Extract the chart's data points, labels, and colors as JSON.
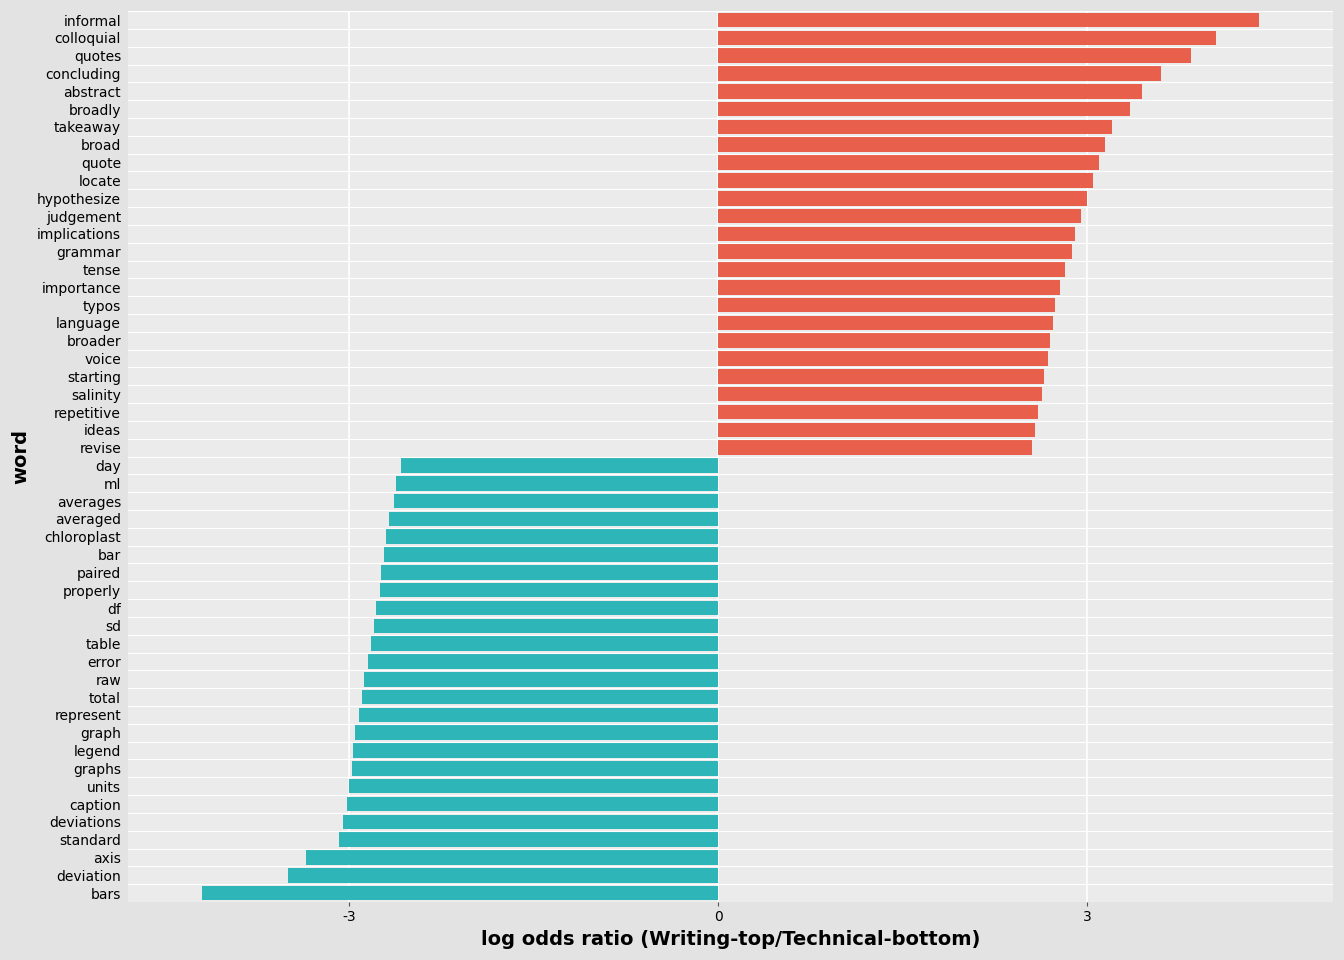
{
  "words": [
    "informal",
    "colloquial",
    "quotes",
    "concluding",
    "abstract",
    "broadly",
    "takeaway",
    "broad",
    "quote",
    "locate",
    "hypothesize",
    "judgement",
    "implications",
    "grammar",
    "tense",
    "importance",
    "typos",
    "language",
    "broader",
    "voice",
    "starting",
    "salinity",
    "repetitive",
    "ideas",
    "revise",
    "day",
    "ml",
    "averages",
    "averaged",
    "chloroplast",
    "bar",
    "paired",
    "properly",
    "df",
    "sd",
    "table",
    "error",
    "raw",
    "total",
    "represent",
    "graph",
    "legend",
    "graphs",
    "units",
    "caption",
    "deviations",
    "standard",
    "axis",
    "deviation",
    "bars"
  ],
  "values": [
    4.4,
    4.05,
    3.85,
    3.6,
    3.45,
    3.35,
    3.2,
    3.15,
    3.1,
    3.05,
    3.0,
    2.95,
    2.9,
    2.88,
    2.82,
    2.78,
    2.74,
    2.72,
    2.7,
    2.68,
    2.65,
    2.63,
    2.6,
    2.58,
    2.55,
    -2.58,
    -2.62,
    -2.64,
    -2.68,
    -2.7,
    -2.72,
    -2.74,
    -2.75,
    -2.78,
    -2.8,
    -2.82,
    -2.85,
    -2.88,
    -2.9,
    -2.92,
    -2.95,
    -2.97,
    -2.98,
    -3.0,
    -3.02,
    -3.05,
    -3.08,
    -3.35,
    -3.5,
    -4.2
  ],
  "pos_color": "#E8604C",
  "neg_color": "#2EB5B8",
  "panel_background": "#EBEBEB",
  "outer_background": "#E3E3E3",
  "xlabel": "log odds ratio (Writing-top/Technical-bottom)",
  "ylabel": "word",
  "xlabel_fontsize": 14,
  "ylabel_fontsize": 14,
  "tick_label_fontsize": 10,
  "xlim": [
    -4.8,
    5.0
  ],
  "xticks": [
    -3,
    0,
    3
  ],
  "grid_color": "#FFFFFF",
  "bar_height": 0.82
}
